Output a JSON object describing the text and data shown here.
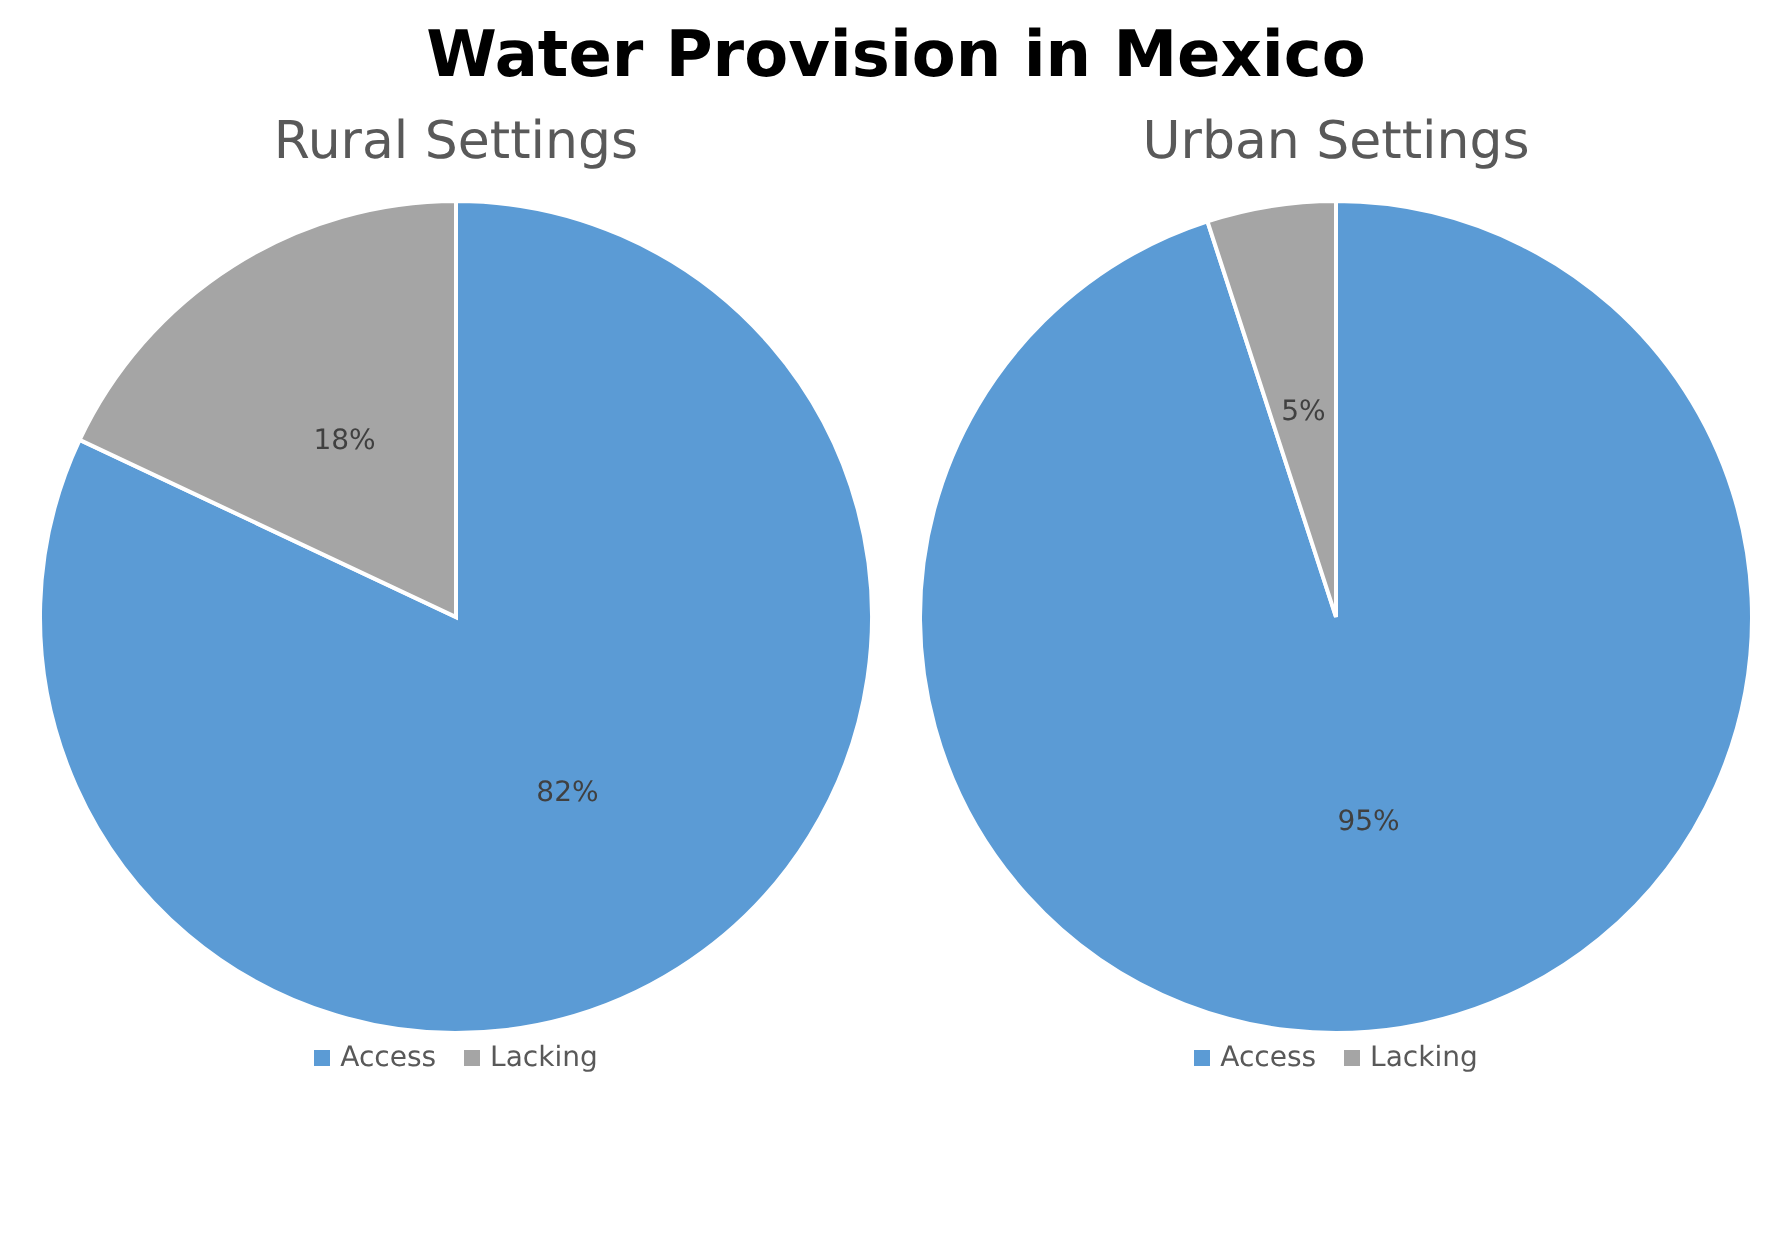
{
  "chart_data": [
    {
      "type": "pie",
      "title": "Water Provision in Mexico",
      "subtitle": "Rural Settings",
      "categories": [
        "Access",
        "Lacking"
      ],
      "values": [
        82,
        18
      ],
      "value_labels": [
        "82%",
        "18%"
      ],
      "colors": [
        "#5b9bd5",
        "#a5a5a5"
      ],
      "legend": "bottom"
    },
    {
      "type": "pie",
      "subtitle": "Urban Settings",
      "categories": [
        "Access",
        "Lacking"
      ],
      "values": [
        95,
        5
      ],
      "value_labels": [
        "95%",
        "5%"
      ],
      "colors": [
        "#5b9bd5",
        "#a5a5a5"
      ],
      "legend": "bottom"
    }
  ]
}
